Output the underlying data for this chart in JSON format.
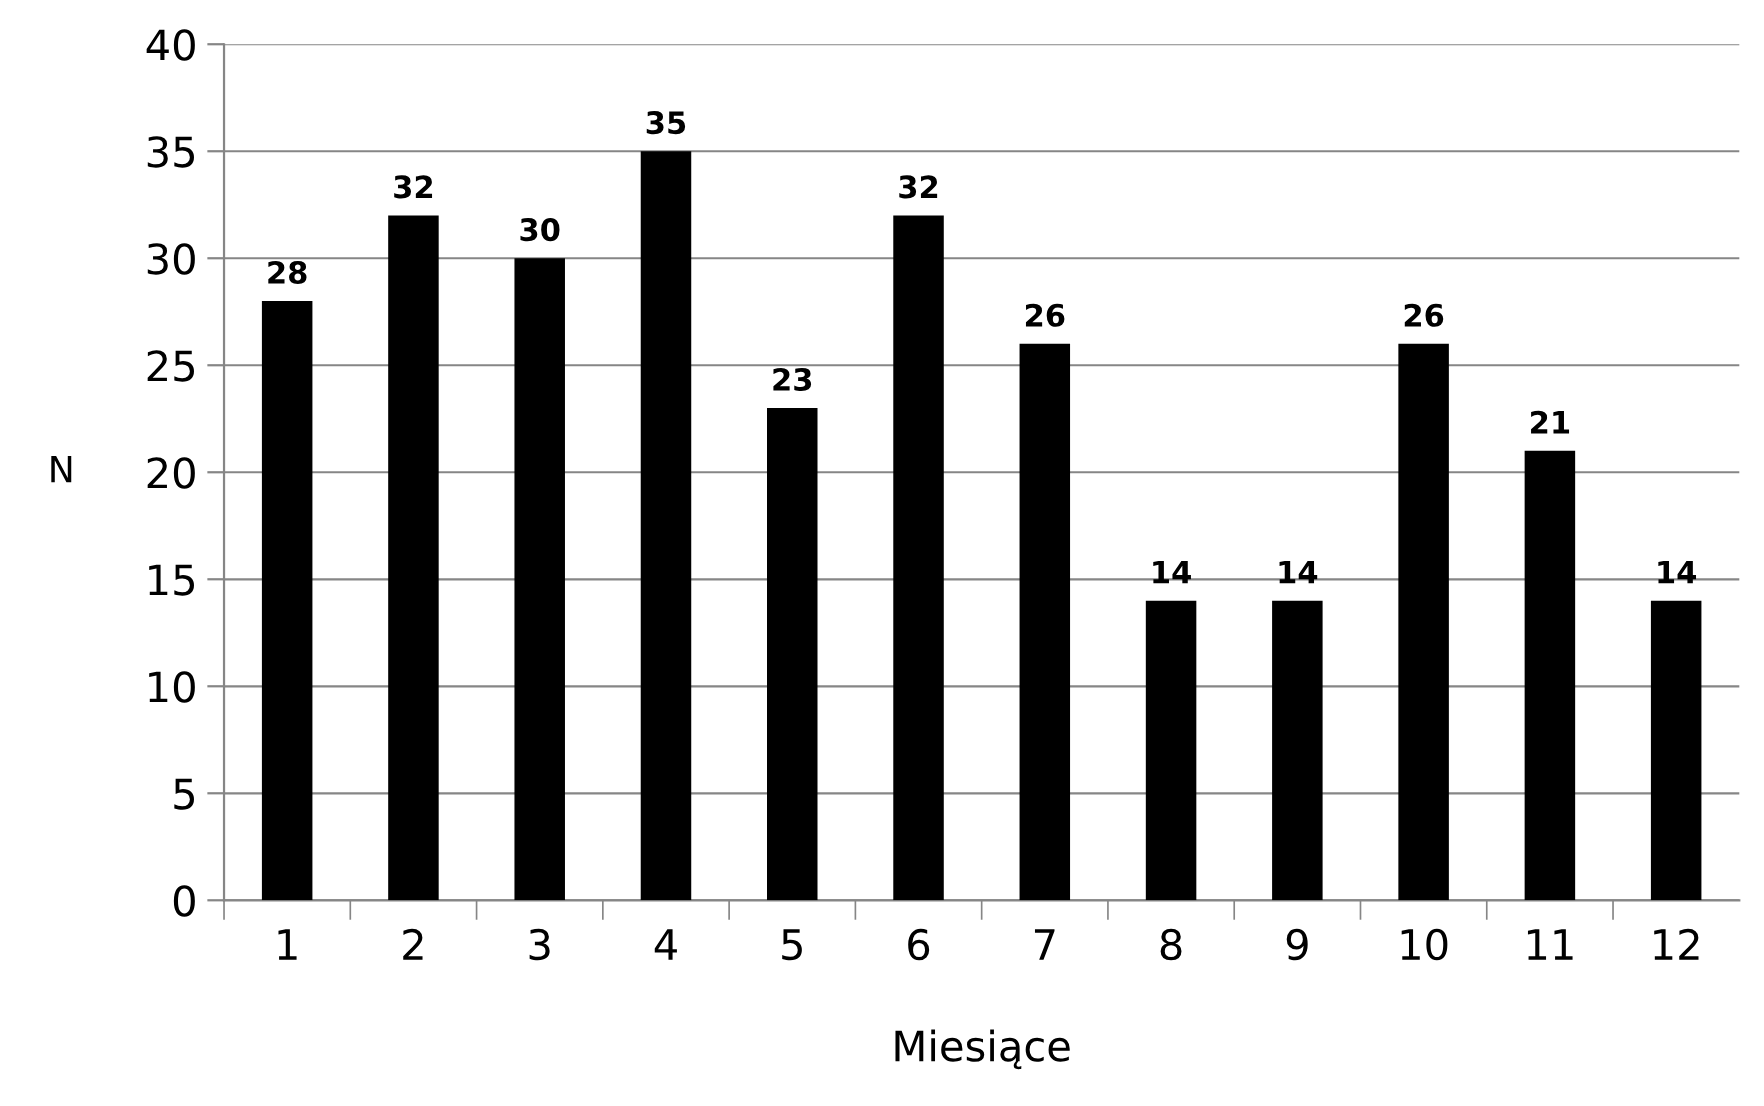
{
  "chart_data": {
    "type": "bar",
    "xlabel": "Miesiące",
    "ylabel": "N",
    "categories": [
      "1",
      "2",
      "3",
      "4",
      "5",
      "6",
      "7",
      "8",
      "9",
      "10",
      "11",
      "12"
    ],
    "values": [
      28,
      32,
      30,
      35,
      23,
      32,
      26,
      14,
      14,
      26,
      21,
      14
    ],
    "color": "#000000",
    "data_labels": true,
    "ylim": [
      0,
      40
    ],
    "yticks": [
      0,
      5,
      10,
      15,
      20,
      25,
      30,
      35,
      40
    ],
    "grid": "y"
  }
}
